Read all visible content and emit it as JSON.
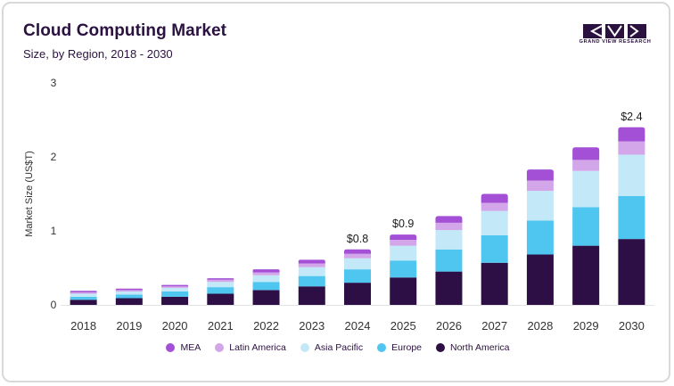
{
  "header": {
    "title": "Cloud Computing Market",
    "subtitle": "Size, by Region, 2018 - 2030"
  },
  "brand": {
    "name": "GRAND VIEW RESEARCH"
  },
  "colors": {
    "title": "#2b1140",
    "axis_text": "#333333",
    "north_america": "#2d0e45",
    "europe": "#4ec6f0",
    "asia_pacific": "#c3e9f8",
    "latin_america": "#d2a6e8",
    "mea": "#a34fd6"
  },
  "chart_data": {
    "type": "bar",
    "stacked": true,
    "title": "Cloud Computing Market",
    "subtitle": "Size, by Region, 2018 - 2030",
    "xlabel": "",
    "ylabel": "Market Size (US$T)",
    "ylim": [
      0,
      3
    ],
    "yticks": [
      "0",
      "1",
      "2",
      "3"
    ],
    "grid": false,
    "legend_position": "bottom",
    "categories": [
      "2018",
      "2019",
      "2020",
      "2021",
      "2022",
      "2023",
      "2024",
      "2025",
      "2026",
      "2027",
      "2028",
      "2029",
      "2030"
    ],
    "series": [
      {
        "name": "North America",
        "color": "#2d0e45",
        "values": [
          0.07,
          0.09,
          0.11,
          0.15,
          0.2,
          0.25,
          0.3,
          0.37,
          0.45,
          0.57,
          0.68,
          0.8,
          0.89
        ]
      },
      {
        "name": "Europe",
        "color": "#4ec6f0",
        "values": [
          0.04,
          0.05,
          0.07,
          0.09,
          0.11,
          0.14,
          0.18,
          0.23,
          0.3,
          0.37,
          0.46,
          0.52,
          0.58
        ]
      },
      {
        "name": "Asia Pacific",
        "color": "#c3e9f8",
        "values": [
          0.04,
          0.04,
          0.05,
          0.07,
          0.09,
          0.12,
          0.15,
          0.2,
          0.26,
          0.33,
          0.4,
          0.49,
          0.56
        ]
      },
      {
        "name": "Latin America",
        "color": "#d2a6e8",
        "values": [
          0.02,
          0.02,
          0.02,
          0.03,
          0.04,
          0.05,
          0.06,
          0.08,
          0.1,
          0.11,
          0.14,
          0.15,
          0.18
        ]
      },
      {
        "name": "MEA",
        "color": "#a34fd6",
        "values": [
          0.02,
          0.02,
          0.02,
          0.02,
          0.04,
          0.05,
          0.06,
          0.07,
          0.09,
          0.12,
          0.15,
          0.17,
          0.19
        ]
      }
    ],
    "annotations": [
      {
        "category": "2024",
        "label": "$0.8"
      },
      {
        "category": "2025",
        "label": "$0.9"
      },
      {
        "category": "2030",
        "label": "$2.4"
      }
    ]
  }
}
